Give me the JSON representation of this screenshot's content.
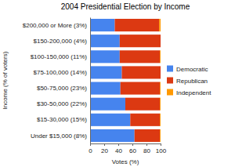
{
  "chart_data": {
    "type": "bar",
    "orientation": "horizontal",
    "stacked": true,
    "title": "2004 Presidential Election by Income",
    "x_label": "Votes (%)",
    "y_label": "Income (% of voters)",
    "categories": [
      "$200,000 or More (3%)",
      "$150-200,000 (4%)",
      "$100-150,000 (11%)",
      "$75-100,000 (14%)",
      "$50-75,000 (23%)",
      "$30-50,000 (22%)",
      "$15-30,000 (15%)",
      "Under $15,000 (8%)"
    ],
    "series": [
      {
        "name": "Democratic",
        "color": "#4684ee",
        "values": [
          35,
          42,
          42,
          45,
          43,
          50,
          57,
          63
        ]
      },
      {
        "name": "Republican",
        "color": "#dc3912",
        "values": [
          63,
          58,
          57,
          55,
          56,
          49,
          42,
          36
        ]
      },
      {
        "name": "Independent",
        "color": "#ff9900",
        "values": [
          2,
          0,
          1,
          0,
          1,
          1,
          1,
          1
        ]
      }
    ],
    "xlim": [
      0,
      100
    ],
    "xticks": [
      0,
      20,
      40,
      60,
      80,
      100
    ],
    "grid": false,
    "legend": "right"
  }
}
